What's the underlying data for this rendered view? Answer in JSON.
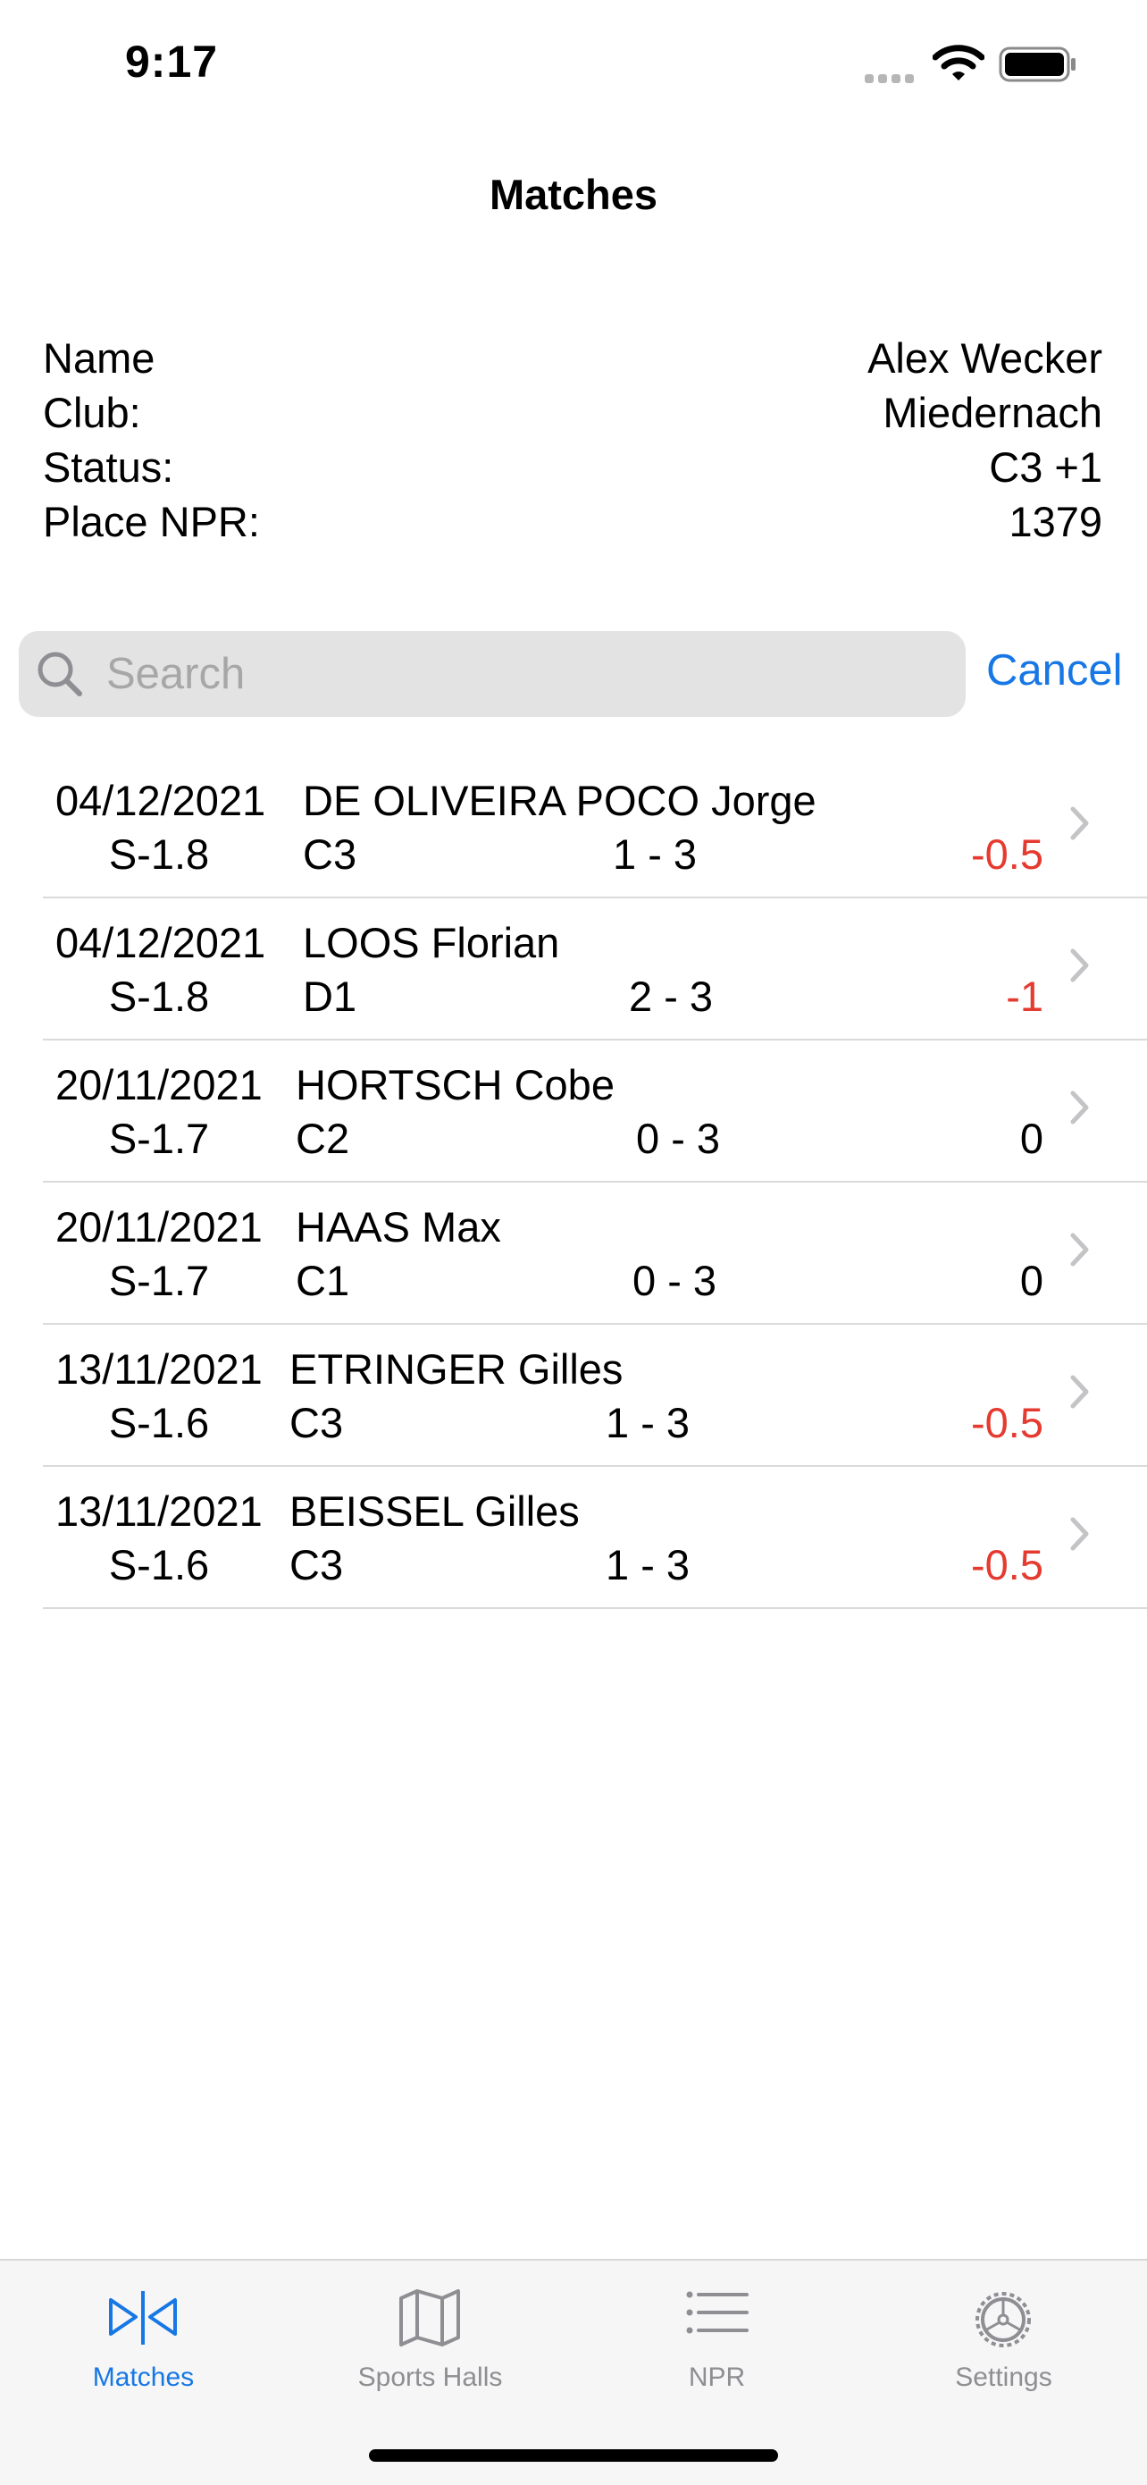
{
  "status_bar": {
    "time": "9:17"
  },
  "nav": {
    "title": "Matches"
  },
  "player": {
    "name_label": "Name",
    "name_value": "Alex Wecker",
    "club_label": "Club:",
    "club_value": "Miedernach",
    "status_label": "Status:",
    "status_value": "C3 +1",
    "place_label": "Place NPR:",
    "place_value": "1379"
  },
  "search": {
    "placeholder": "Search",
    "value": "",
    "cancel_label": "Cancel"
  },
  "matches": [
    {
      "date": "04/12/2021",
      "opponent": "DE OLIVEIRA POCO Jorge",
      "season": "S-1.8",
      "class": "C3",
      "score": "1 - 3",
      "delta": "-0.5",
      "negative": true
    },
    {
      "date": "04/12/2021",
      "opponent": "LOOS Florian",
      "season": "S-1.8",
      "class": "D1",
      "score": "2 - 3",
      "delta": "-1",
      "negative": true
    },
    {
      "date": "20/11/2021",
      "opponent": "HORTSCH Cobe",
      "season": "S-1.7",
      "class": "C2",
      "score": "0 - 3",
      "delta": "0",
      "negative": false
    },
    {
      "date": "20/11/2021",
      "opponent": "HAAS Max",
      "season": "S-1.7",
      "class": "C1",
      "score": "0 - 3",
      "delta": "0",
      "negative": false
    },
    {
      "date": "13/11/2021",
      "opponent": "ETRINGER Gilles",
      "season": "S-1.6",
      "class": "C3",
      "score": "1 - 3",
      "delta": "-0.5",
      "negative": true
    },
    {
      "date": "13/11/2021",
      "opponent": "BEISSEL Gilles",
      "season": "S-1.6",
      "class": "C3",
      "score": "1 - 3",
      "delta": "-0.5",
      "negative": true
    }
  ],
  "tabs": [
    {
      "label": "Matches",
      "icon": "matches-icon",
      "active": true
    },
    {
      "label": "Sports Halls",
      "icon": "map-icon",
      "active": false
    },
    {
      "label": "NPR",
      "icon": "list-icon",
      "active": false
    },
    {
      "label": "Settings",
      "icon": "gear-icon",
      "active": false
    }
  ],
  "colors": {
    "accent": "#1677e5",
    "negative": "#e53a2f",
    "inactive_tab": "#8e8e93"
  }
}
